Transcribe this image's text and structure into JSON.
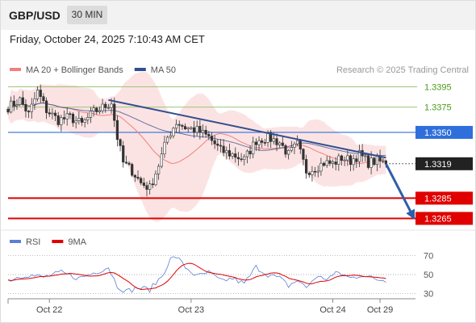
{
  "header": {
    "pair": "GBP/USD",
    "timeframe": "30 MIN",
    "datetime": "Friday, October 24, 2025 7:10:43 AM CET"
  },
  "colors": {
    "bollinger": "#f08080",
    "ma50": "#2f4f8f",
    "resistance": "#8fc06a",
    "pivot": "#2f6fdc",
    "support": "#e00000",
    "candle": "#333333",
    "rsi": "#5b7fd6",
    "rsi_ma": "#e00000",
    "arrow": "#2f5ea8"
  },
  "chart_data": [
    {
      "type": "candlestick",
      "legend": {
        "placement": "top-left",
        "items": [
          {
            "label": "MA 20 + Bollinger Bands",
            "color": "#f08080"
          },
          {
            "label": "MA 50",
            "color": "#2f4f8f"
          }
        ]
      },
      "watermark": "Research © 2025 Trading Central",
      "ylim": [
        1.3255,
        1.3405
      ],
      "x_ticks": [
        {
          "label": "Oct 22",
          "index": 14
        },
        {
          "label": "Oct 23",
          "index": 62
        },
        {
          "label": "Oct 24",
          "index": 110
        },
        {
          "label": "Oct 29",
          "index": 126
        }
      ],
      "levels": [
        {
          "label": "1.3395",
          "value": 1.3395,
          "kind": "resistance",
          "style": "thin"
        },
        {
          "label": "1.3375",
          "value": 1.3375,
          "kind": "resistance",
          "style": "thin"
        },
        {
          "label": "1.3350",
          "value": 1.335,
          "kind": "pivot",
          "style": "medium"
        },
        {
          "label": "1.3319",
          "value": 1.3319,
          "kind": "last",
          "style": "dotted"
        },
        {
          "label": "1.3285",
          "value": 1.3285,
          "kind": "support",
          "style": "thick"
        },
        {
          "label": "1.3265",
          "value": 1.3265,
          "kind": "support",
          "style": "thick"
        }
      ],
      "trendline": {
        "from": [
          34,
          1.3382
        ],
        "to": [
          128,
          1.3325
        ]
      },
      "forecast_arrow": {
        "from": [
          128,
          1.3319
        ],
        "to": [
          137,
          1.3268
        ]
      },
      "anchors": [
        [
          0,
          1.3375
        ],
        [
          4,
          1.3382
        ],
        [
          7,
          1.3368
        ],
        [
          10,
          1.339
        ],
        [
          13,
          1.3372
        ],
        [
          17,
          1.3362
        ],
        [
          21,
          1.3365
        ],
        [
          25,
          1.3358
        ],
        [
          29,
          1.337
        ],
        [
          33,
          1.3376
        ],
        [
          35,
          1.338
        ],
        [
          37,
          1.3345
        ],
        [
          39,
          1.332
        ],
        [
          42,
          1.3312
        ],
        [
          45,
          1.33
        ],
        [
          48,
          1.3295
        ],
        [
          51,
          1.3318
        ],
        [
          54,
          1.3345
        ],
        [
          57,
          1.336
        ],
        [
          60,
          1.3355
        ],
        [
          64,
          1.3352
        ],
        [
          68,
          1.3345
        ],
        [
          72,
          1.3332
        ],
        [
          76,
          1.3328
        ],
        [
          80,
          1.3323
        ],
        [
          84,
          1.3342
        ],
        [
          88,
          1.3345
        ],
        [
          92,
          1.334
        ],
        [
          95,
          1.3328
        ],
        [
          98,
          1.3338
        ],
        [
          101,
          1.3312
        ],
        [
          104,
          1.3315
        ],
        [
          107,
          1.332
        ],
        [
          110,
          1.3319
        ],
        [
          113,
          1.3325
        ],
        [
          116,
          1.3322
        ],
        [
          119,
          1.3328
        ],
        [
          122,
          1.332
        ],
        [
          125,
          1.3322
        ],
        [
          128,
          1.3319
        ]
      ]
    },
    {
      "type": "line",
      "legend": {
        "placement": "top-left",
        "items": [
          {
            "label": "RSI",
            "color": "#5b7fd6"
          },
          {
            "label": "9MA",
            "color": "#e00000"
          }
        ]
      },
      "ylim": [
        20,
        80
      ],
      "y_ticks": [
        {
          "label": "70",
          "value": 70
        },
        {
          "label": "50",
          "value": 50
        },
        {
          "label": "30",
          "value": 30
        }
      ],
      "rsi_anchors": [
        [
          0,
          44
        ],
        [
          6,
          50
        ],
        [
          12,
          47
        ],
        [
          18,
          52
        ],
        [
          24,
          46
        ],
        [
          30,
          53
        ],
        [
          34,
          58
        ],
        [
          37,
          38
        ],
        [
          40,
          32
        ],
        [
          44,
          36
        ],
        [
          48,
          34
        ],
        [
          52,
          48
        ],
        [
          55,
          66
        ],
        [
          57,
          69
        ],
        [
          60,
          58
        ],
        [
          64,
          48
        ],
        [
          68,
          52
        ],
        [
          72,
          43
        ],
        [
          76,
          46
        ],
        [
          80,
          40
        ],
        [
          84,
          58
        ],
        [
          88,
          50
        ],
        [
          92,
          46
        ],
        [
          95,
          38
        ],
        [
          98,
          44
        ],
        [
          101,
          36
        ],
        [
          104,
          47
        ],
        [
          108,
          46
        ],
        [
          112,
          52
        ],
        [
          116,
          46
        ],
        [
          120,
          50
        ],
        [
          124,
          45
        ],
        [
          128,
          44
        ]
      ]
    }
  ]
}
